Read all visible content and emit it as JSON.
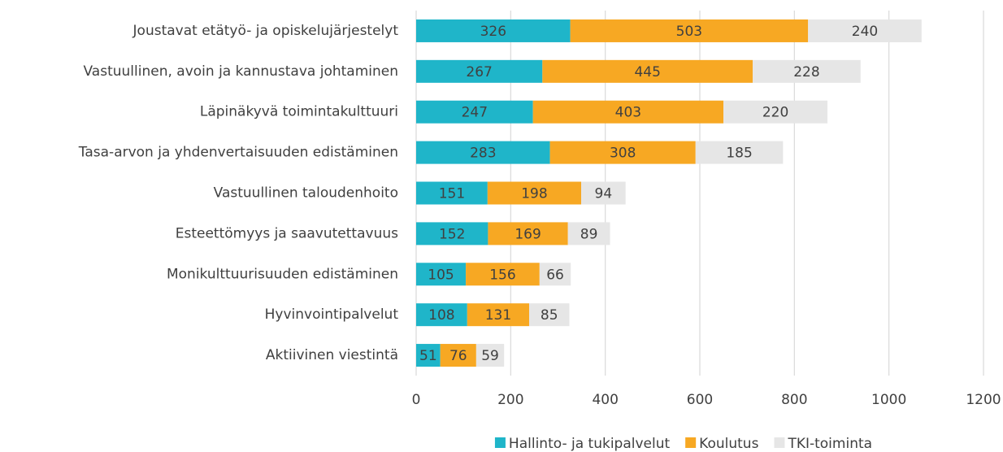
{
  "chart_data": {
    "type": "bar",
    "orientation": "horizontal",
    "stacked": true,
    "categories": [
      "Joustavat etätyö- ja opiskelujärjestelyt",
      "Vastuullinen, avoin ja kannustava johtaminen",
      "Läpinäkyvä toimintakulttuuri",
      "Tasa-arvon ja yhdenvertaisuuden edistäminen",
      "Vastuullinen taloudenhoito",
      "Esteettömyys ja saavutettavuus",
      "Monikulttuurisuuden edistäminen",
      "Hyvinvointipalvelut",
      "Aktiivinen viestintä"
    ],
    "series": [
      {
        "name": "Hallinto- ja tukipalvelut",
        "color": "#1fb5c9",
        "values": [
          326,
          267,
          247,
          283,
          151,
          152,
          105,
          108,
          51
        ]
      },
      {
        "name": "Koulutus",
        "color": "#f7a823",
        "values": [
          503,
          445,
          403,
          308,
          198,
          169,
          156,
          131,
          76
        ]
      },
      {
        "name": "TKI-toiminta",
        "color": "#e6e6e6",
        "values": [
          240,
          228,
          220,
          185,
          94,
          89,
          66,
          85,
          59
        ]
      }
    ],
    "xlim": [
      0,
      1200
    ],
    "xticks": [
      0,
      200,
      400,
      600,
      800,
      1000,
      1200
    ],
    "grid": true,
    "legend": "bottom"
  }
}
